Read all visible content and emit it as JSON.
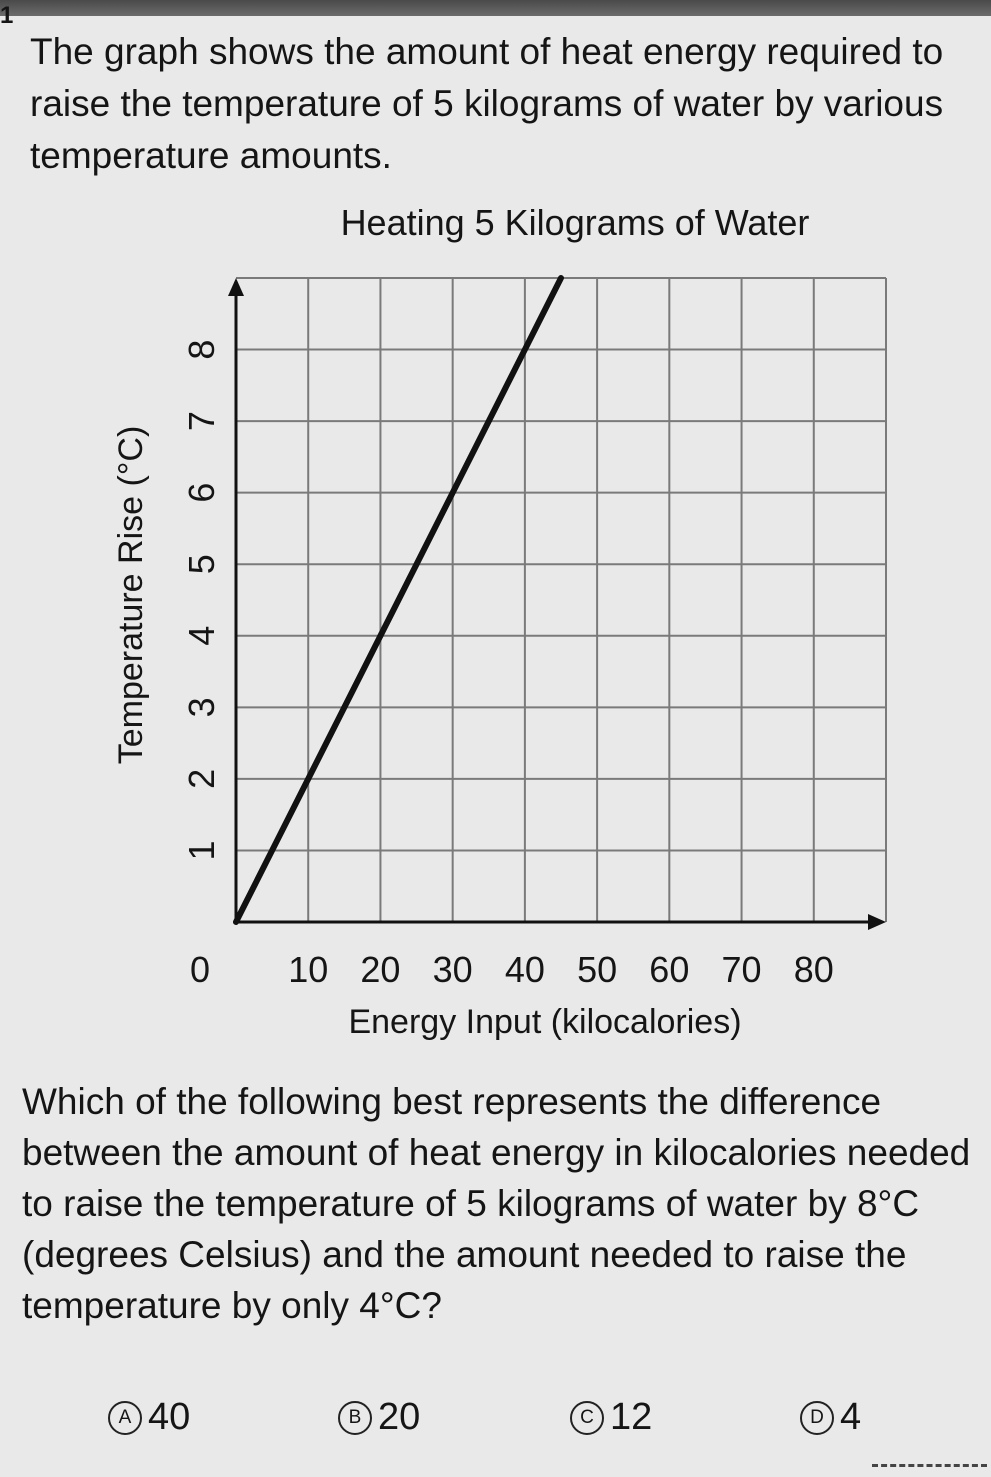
{
  "question_number": "1",
  "intro": "The graph shows the amount of heat energy required to raise the temperature of 5 kilograms of water by various temperature amounts.",
  "chart_data": {
    "type": "line",
    "title": "Heating 5 Kilograms of Water",
    "xlabel": "Energy Input (kilocalories)",
    "ylabel": "Temperature Rise (°C)",
    "xlim": [
      0,
      90
    ],
    "ylim": [
      0,
      9
    ],
    "x_ticks": [
      "0",
      "10",
      "20",
      "30",
      "40",
      "50",
      "60",
      "70",
      "80"
    ],
    "y_ticks": [
      "1",
      "2",
      "3",
      "4",
      "5",
      "6",
      "7",
      "8"
    ],
    "grid": true,
    "x": [
      0,
      5,
      10,
      20,
      30,
      40,
      45
    ],
    "y": [
      0,
      1,
      2,
      4,
      6,
      8,
      9
    ],
    "color": "#111111"
  },
  "question": "Which of the following best represents the difference between the amount of heat energy in kilocalories needed to raise the temperature of 5 kilograms of water by 8°C (degrees Celsius) and the amount needed to raise the temperature by only 4°C?",
  "choices": [
    {
      "letter": "A",
      "value": "40"
    },
    {
      "letter": "B",
      "value": "20"
    },
    {
      "letter": "C",
      "value": "12"
    },
    {
      "letter": "D",
      "value": "4"
    }
  ]
}
